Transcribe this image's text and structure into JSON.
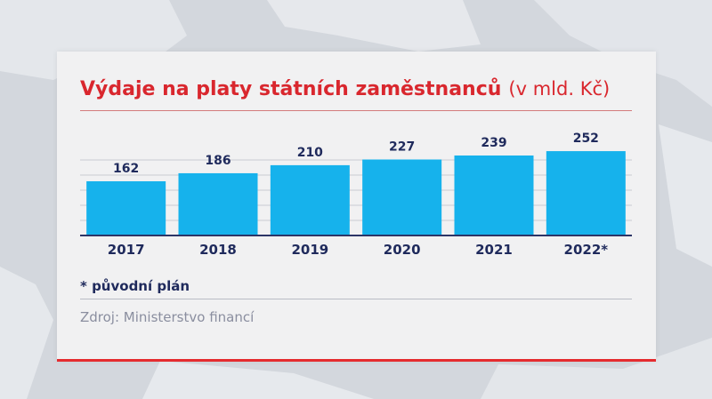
{
  "colors": {
    "title": "#d9272e",
    "bar": "#16b2ec",
    "label": "#1f2a5c",
    "source": "#8a8e9f",
    "accent": "#e52b2f"
  },
  "title": {
    "main": "Výdaje na platy státních zaměstnanců",
    "unit": "(v mld. Kč)"
  },
  "chart_data": {
    "type": "bar",
    "categories": [
      "2017",
      "2018",
      "2019",
      "2020",
      "2021",
      "2022*"
    ],
    "values": [
      162,
      186,
      210,
      227,
      239,
      252
    ],
    "title": "Výdaje na platy státních zaměstnanců (v mld. Kč)",
    "xlabel": "",
    "ylabel": "",
    "ylim": [
      0,
      300
    ],
    "grid": true,
    "legend": "none"
  },
  "footnote": "* původní plán",
  "source": "Zdroj: Ministerstvo financí"
}
